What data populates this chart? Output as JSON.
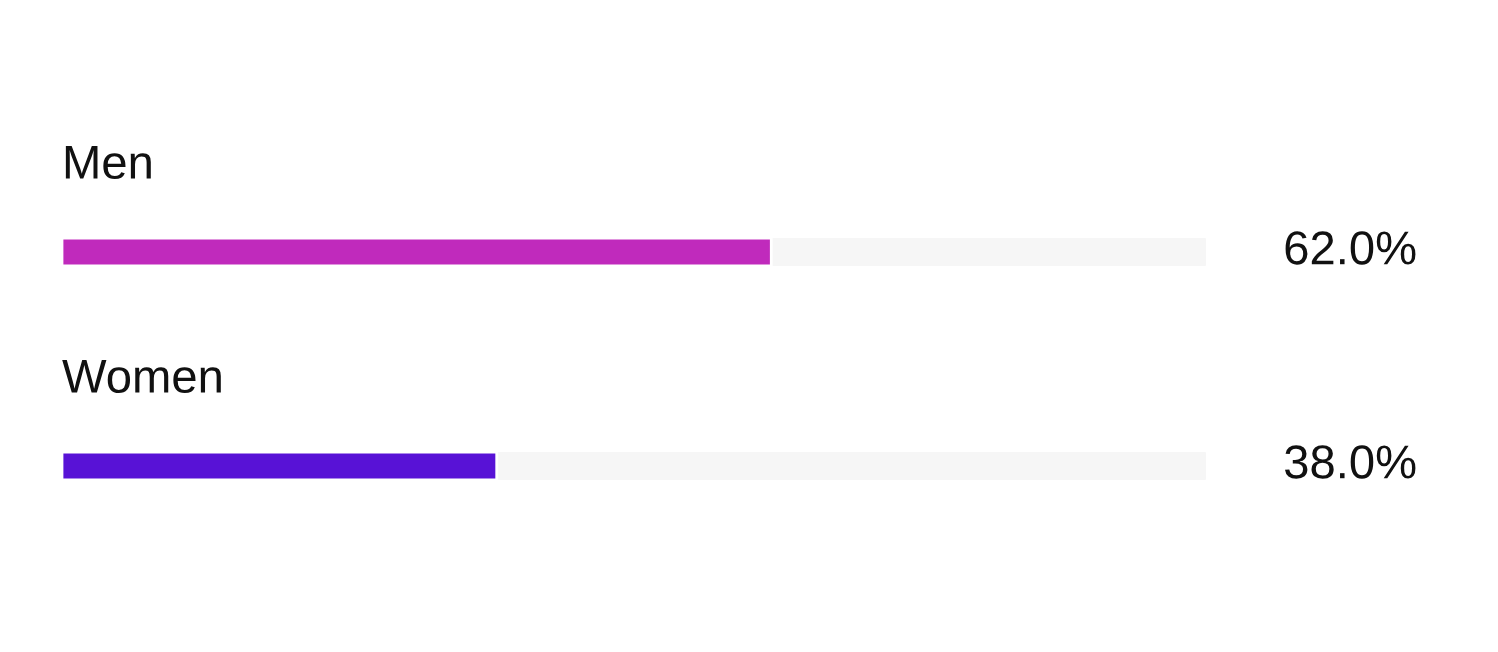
{
  "chart_data": {
    "type": "bar",
    "orientation": "horizontal",
    "categories": [
      "Men",
      "Women"
    ],
    "values": [
      62,
      38
    ],
    "colors": [
      "#c02abc",
      "#5812d6"
    ],
    "value_labels": [
      "62.0%",
      "38.0%"
    ],
    "xlim": [
      0,
      100
    ],
    "tick_labels": false
  }
}
